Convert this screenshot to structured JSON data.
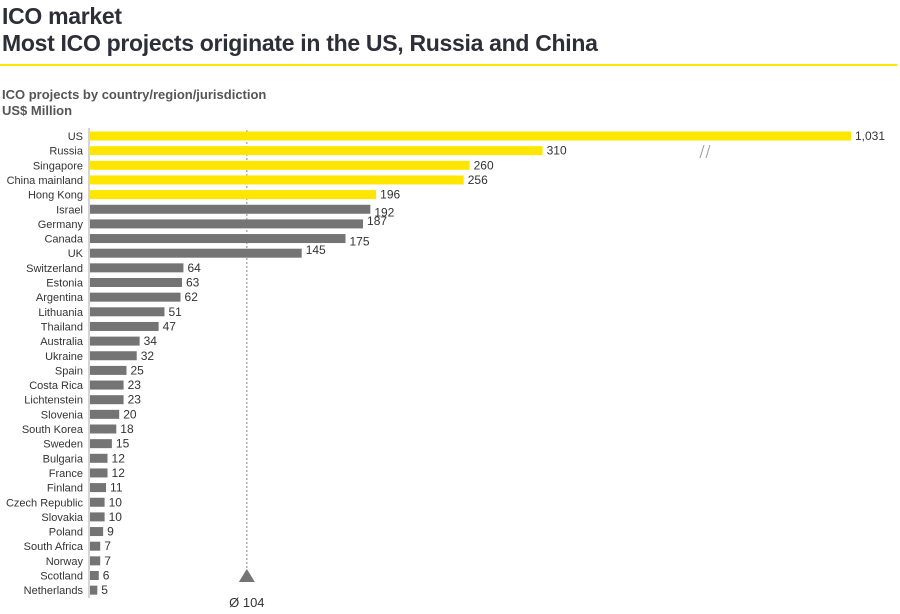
{
  "title": "ICO market",
  "subtitle": "Most ICO projects originate in the US, Russia and China",
  "chart_data": {
    "type": "bar",
    "orientation": "horizontal",
    "title": "ICO projects by country/region/jurisdiction",
    "unit": "US$ Million",
    "categories": [
      "US",
      "Russia",
      "Singapore",
      "China mainland",
      "Hong Kong",
      "Israel",
      "Germany",
      "Canada",
      "UK",
      "Switzerland",
      "Estonia",
      "Argentina",
      "Lithuania",
      "Thailand",
      "Australia",
      "Ukraine",
      "Spain",
      "Costa Rica",
      "Lichtenstein",
      "Slovenia",
      "South Korea",
      "Sweden",
      "Bulgaria",
      "France",
      "Finland",
      "Czech Republic",
      "Slovakia",
      "Poland",
      "South Africa",
      "Norway",
      "Scotland",
      "Netherlands"
    ],
    "values": [
      1031,
      310,
      260,
      256,
      196,
      192,
      187,
      175,
      145,
      64,
      63,
      62,
      51,
      47,
      34,
      32,
      25,
      23,
      23,
      20,
      18,
      15,
      12,
      12,
      11,
      10,
      10,
      9,
      7,
      7,
      6,
      5
    ],
    "value_labels": [
      "1,031",
      "310",
      "260",
      "256",
      "196",
      "192",
      "187",
      "175",
      "145",
      "64",
      "63",
      "62",
      "51",
      "47",
      "34",
      "32",
      "25",
      "23",
      "23",
      "20",
      "18",
      "15",
      "12",
      "12",
      "11",
      "10",
      "10",
      "9",
      "7",
      "7",
      "6",
      "5"
    ],
    "highlighted_count": 5,
    "colors": {
      "highlight": "#ffe600",
      "default": "#747474",
      "accent_rule": "#ffe600"
    },
    "broken_axis_bar": "US",
    "average": {
      "value": 104,
      "label": "Ø 104"
    },
    "grid": false,
    "legend": "none"
  }
}
